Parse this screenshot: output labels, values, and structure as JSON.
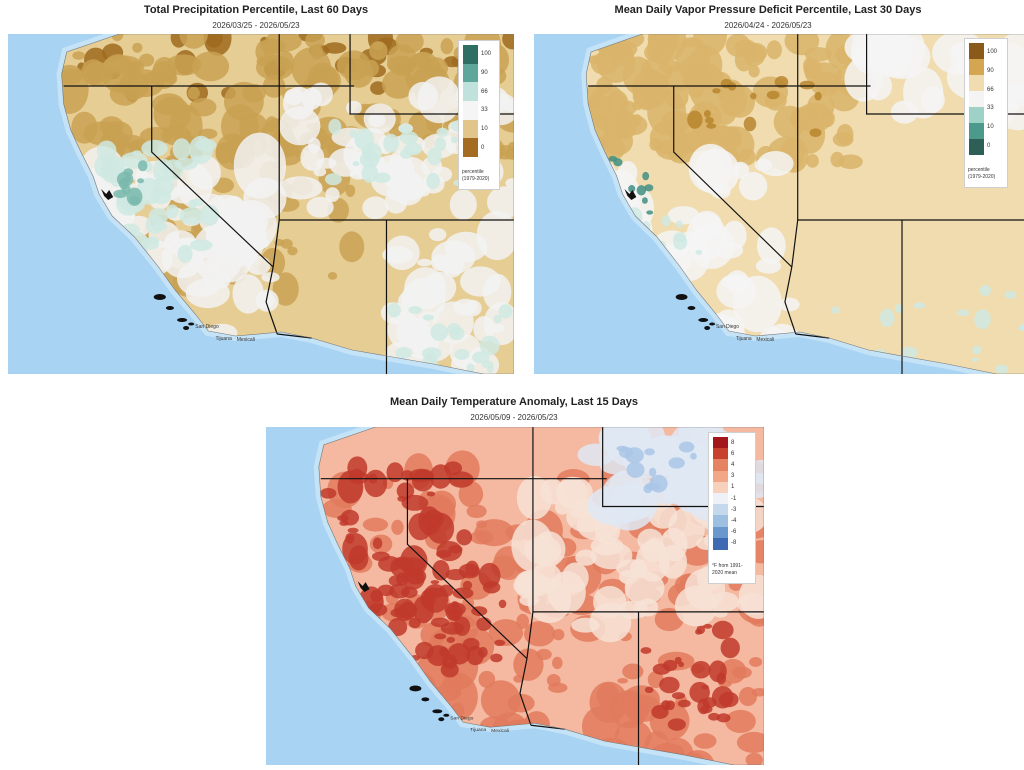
{
  "maps": [
    {
      "id": "precip",
      "title": "Total Precipitation Percentile, Last 60 Days",
      "date_range": "2026/03/25 - 2026/05/23",
      "legend": {
        "ticks": [
          "100",
          "90",
          "66",
          "33",
          "10",
          "0"
        ],
        "note_line1": "percentile",
        "note_line2": "(1979-2020)",
        "colors": [
          "#2f6f63",
          "#5fa79b",
          "#bfe3dc",
          "#f5f5f5",
          "#e2c58a",
          "#a46b22"
        ]
      },
      "palette": {
        "base": "#e6cd93",
        "dark": "#c9a152",
        "darker": "#9d6a1f",
        "wet": "#cfe9e2",
        "wetter": "#79b9ad",
        "neutral": "#f2f2f2"
      }
    },
    {
      "id": "vpd",
      "title": "Mean Daily Vapor Pressure Deficit Percentile, Last 30 Days",
      "date_range": "2026/04/24 - 2026/05/23",
      "legend": {
        "ticks": [
          "100",
          "90",
          "66",
          "33",
          "10",
          "0"
        ],
        "note_line1": "percentile",
        "note_line2": "(1979-2020)",
        "colors": [
          "#8a5a1b",
          "#d5a651",
          "#f0dcae",
          "#f4f4f4",
          "#9fd2c6",
          "#4b9a8c",
          "#2e5f57"
        ]
      },
      "palette": {
        "base": "#f0dcae",
        "dark": "#d9b46a",
        "darker": "#b7852e",
        "wet": "#cfe9e2",
        "wetter": "#3f8f82",
        "neutral": "#f4f4f4"
      }
    },
    {
      "id": "temp",
      "title": "Mean Daily Temperature Anomaly, Last 15 Days",
      "date_range": "2026/05/09 - 2026/05/23",
      "legend": {
        "ticks": [
          "8",
          "6",
          "4",
          "3",
          "1",
          "-1",
          "-3",
          "-4",
          "-6",
          "-8"
        ],
        "note_line1": "°F from 1991-",
        "note_line2": "2020 mean",
        "colors": [
          "#a3171c",
          "#c8402e",
          "#e58262",
          "#f2a888",
          "#f8d1bd",
          "#eef1f5",
          "#c5d9ec",
          "#9dbfe0",
          "#6b98cc",
          "#3d6ab3"
        ]
      },
      "palette": {
        "base": "#f4b9a0",
        "dark": "#e27a5d",
        "darker": "#c0392b",
        "wet": "#dfe8f3",
        "wetter": "#a9c6e6",
        "neutral": "#f7e2d6"
      }
    }
  ],
  "place_labels": [
    "San Diego",
    "Tijuana",
    "Mexicali"
  ]
}
